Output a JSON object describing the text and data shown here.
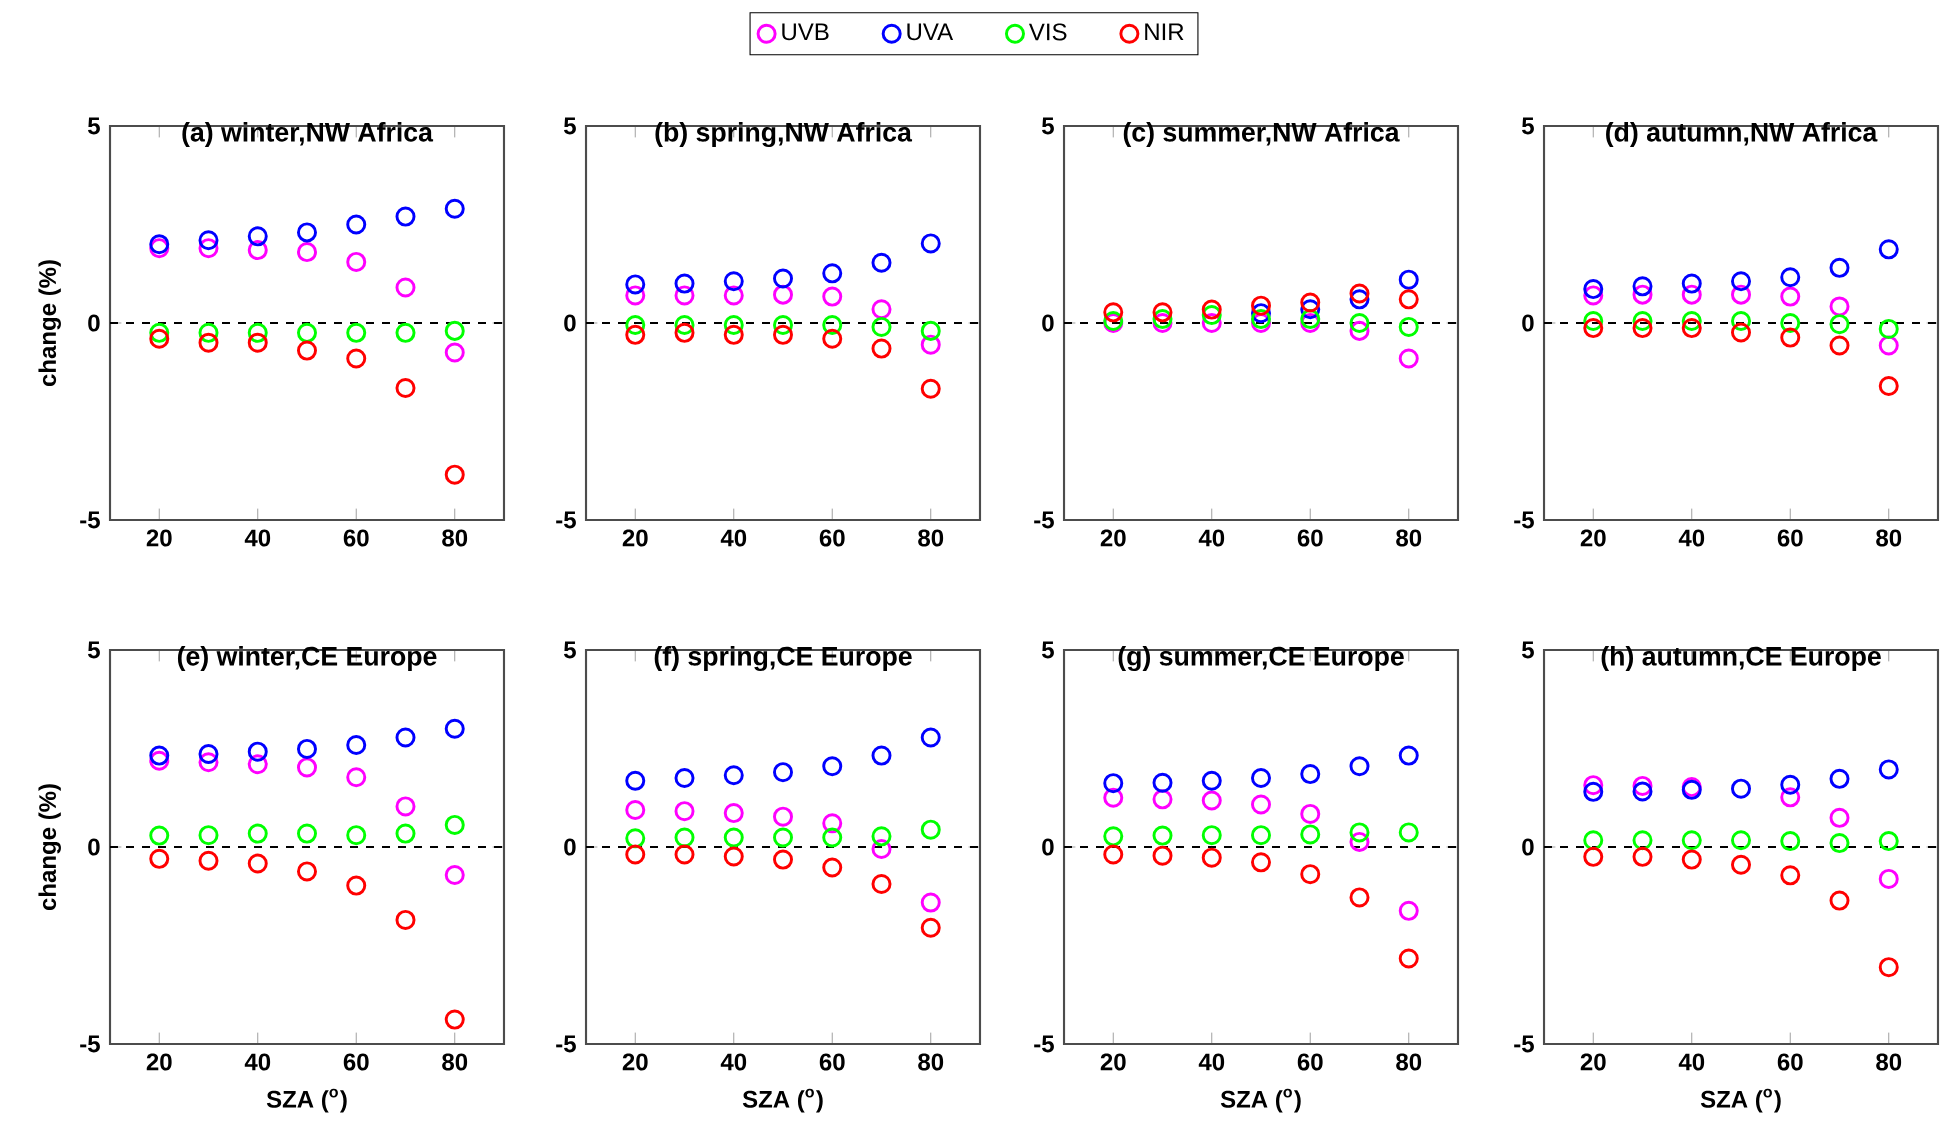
{
  "chart_data": [
    {
      "type": "scatter",
      "title": "(a) winter,NW Africa",
      "ylabel": "change (%)",
      "x": [
        20,
        30,
        40,
        50,
        60,
        70,
        80
      ],
      "xlim": [
        10,
        90
      ],
      "xticks": [
        20,
        40,
        60,
        80
      ],
      "ylim": [
        -5,
        5
      ],
      "yticks": [
        -5,
        0,
        5
      ],
      "marker": "circle",
      "legend": "top",
      "ref_lines": [
        {
          "axis": "y",
          "value": 0,
          "color": "#000000",
          "line_style": "dashed"
        }
      ],
      "series": [
        {
          "name": "UVB",
          "color": "#ff00ff",
          "values": [
            1.9,
            1.9,
            1.85,
            1.8,
            1.55,
            0.9,
            -0.75
          ]
        },
        {
          "name": "UVA",
          "color": "#0000ff",
          "values": [
            2.0,
            2.1,
            2.2,
            2.3,
            2.5,
            2.7,
            2.9
          ]
        },
        {
          "name": "VIS",
          "color": "#00ff00",
          "values": [
            -0.25,
            -0.25,
            -0.25,
            -0.25,
            -0.25,
            -0.25,
            -0.2
          ]
        },
        {
          "name": "NIR",
          "color": "#ff0000",
          "values": [
            -0.4,
            -0.5,
            -0.5,
            -0.7,
            -0.9,
            -1.65,
            -3.85
          ]
        }
      ]
    },
    {
      "type": "scatter",
      "title": "(b) spring,NW Africa",
      "x": [
        20,
        30,
        40,
        50,
        60,
        70,
        80
      ],
      "xlim": [
        10,
        90
      ],
      "xticks": [
        20,
        40,
        60,
        80
      ],
      "ylim": [
        -5,
        5
      ],
      "yticks": [
        -5,
        0,
        5
      ],
      "marker": "circle",
      "ref_lines": [
        {
          "axis": "y",
          "value": 0,
          "color": "#000000",
          "line_style": "dashed"
        }
      ],
      "series": [
        {
          "color": "#ff00ff",
          "values": [
            0.7,
            0.7,
            0.7,
            0.72,
            0.67,
            0.35,
            -0.55
          ]
        },
        {
          "color": "#0000ff",
          "values": [
            0.98,
            1.0,
            1.06,
            1.13,
            1.26,
            1.53,
            2.02
          ]
        },
        {
          "color": "#00ff00",
          "values": [
            -0.05,
            -0.05,
            -0.05,
            -0.05,
            -0.05,
            -0.1,
            -0.2
          ]
        },
        {
          "color": "#ff0000",
          "values": [
            -0.3,
            -0.25,
            -0.3,
            -0.3,
            -0.4,
            -0.65,
            -1.67
          ]
        }
      ]
    },
    {
      "type": "scatter",
      "title": "(c) summer,NW Africa",
      "x": [
        20,
        30,
        40,
        50,
        60,
        70,
        80
      ],
      "xlim": [
        10,
        90
      ],
      "xticks": [
        20,
        40,
        60,
        80
      ],
      "ylim": [
        -5,
        5
      ],
      "yticks": [
        -5,
        0,
        5
      ],
      "marker": "circle",
      "ref_lines": [
        {
          "axis": "y",
          "value": 0,
          "color": "#000000",
          "line_style": "dashed"
        }
      ],
      "series": [
        {
          "color": "#ff00ff",
          "values": [
            0,
            0,
            0,
            0,
            0,
            -0.2,
            -0.9
          ]
        },
        {
          "color": "#0000ff",
          "values": [
            null,
            null,
            null,
            0.25,
            0.35,
            0.6,
            1.1
          ]
        },
        {
          "color": "#00ff00",
          "values": [
            0.05,
            0.1,
            0.2,
            0.1,
            0.1,
            0,
            -0.1
          ]
        },
        {
          "color": "#ff0000",
          "values": [
            0.27,
            0.27,
            0.34,
            0.44,
            0.52,
            0.75,
            0.6
          ]
        }
      ]
    },
    {
      "type": "scatter",
      "title": "(d) autumn,NW Africa",
      "x": [
        20,
        30,
        40,
        50,
        60,
        70,
        80
      ],
      "xlim": [
        10,
        90
      ],
      "xticks": [
        20,
        40,
        60,
        80
      ],
      "ylim": [
        -5,
        5
      ],
      "yticks": [
        -5,
        0,
        5
      ],
      "marker": "circle",
      "ref_lines": [
        {
          "axis": "y",
          "value": 0,
          "color": "#000000",
          "line_style": "dashed"
        }
      ],
      "series": [
        {
          "color": "#ff00ff",
          "values": [
            0.7,
            0.72,
            0.72,
            0.72,
            0.67,
            0.42,
            -0.57
          ]
        },
        {
          "color": "#0000ff",
          "values": [
            0.86,
            0.93,
            1.0,
            1.06,
            1.16,
            1.4,
            1.87
          ]
        },
        {
          "color": "#00ff00",
          "values": [
            0.05,
            0.05,
            0.05,
            0.05,
            0,
            -0.03,
            -0.15
          ]
        },
        {
          "color": "#ff0000",
          "values": [
            -0.13,
            -0.13,
            -0.13,
            -0.24,
            -0.37,
            -0.57,
            -1.6
          ]
        }
      ]
    },
    {
      "type": "scatter",
      "title": "(e) winter,CE Europe",
      "xlabel": "SZA ($^{o}$)",
      "ylabel": "change (%)",
      "x": [
        20,
        30,
        40,
        50,
        60,
        70,
        80
      ],
      "xlim": [
        10,
        90
      ],
      "xticks": [
        20,
        40,
        60,
        80
      ],
      "ylim": [
        -5,
        5
      ],
      "yticks": [
        -5,
        0,
        5
      ],
      "marker": "circle",
      "ref_lines": [
        {
          "axis": "y",
          "value": 0,
          "color": "#000000",
          "line_style": "dashed"
        }
      ],
      "series": [
        {
          "color": "#ff00ff",
          "values": [
            2.19,
            2.15,
            2.1,
            2.02,
            1.77,
            1.03,
            -0.71
          ]
        },
        {
          "color": "#0000ff",
          "values": [
            2.32,
            2.36,
            2.42,
            2.49,
            2.59,
            2.78,
            3.0
          ]
        },
        {
          "color": "#00ff00",
          "values": [
            0.29,
            0.3,
            0.34,
            0.34,
            0.3,
            0.34,
            0.56
          ]
        },
        {
          "color": "#ff0000",
          "values": [
            -0.3,
            -0.35,
            -0.42,
            -0.62,
            -0.98,
            -1.85,
            -4.38
          ]
        }
      ]
    },
    {
      "type": "scatter",
      "title": "(f) spring,CE Europe",
      "xlabel": "SZA ($^{o}$)",
      "x": [
        20,
        30,
        40,
        50,
        60,
        70,
        80
      ],
      "xlim": [
        10,
        90
      ],
      "xticks": [
        20,
        40,
        60,
        80
      ],
      "ylim": [
        -5,
        5
      ],
      "yticks": [
        -5,
        0,
        5
      ],
      "marker": "circle",
      "ref_lines": [
        {
          "axis": "y",
          "value": 0,
          "color": "#000000",
          "line_style": "dashed"
        }
      ],
      "series": [
        {
          "color": "#ff00ff",
          "values": [
            0.94,
            0.91,
            0.86,
            0.77,
            0.6,
            -0.05,
            -1.41
          ]
        },
        {
          "color": "#0000ff",
          "values": [
            1.68,
            1.75,
            1.82,
            1.9,
            2.05,
            2.32,
            2.78
          ]
        },
        {
          "color": "#00ff00",
          "values": [
            0.22,
            0.24,
            0.24,
            0.24,
            0.24,
            0.27,
            0.44
          ]
        },
        {
          "color": "#ff0000",
          "values": [
            -0.19,
            -0.19,
            -0.24,
            -0.32,
            -0.52,
            -0.94,
            -2.05
          ]
        }
      ]
    },
    {
      "type": "scatter",
      "title": "(g) summer,CE Europe",
      "xlabel": "SZA ($^{o}$)",
      "x": [
        20,
        30,
        40,
        50,
        60,
        70,
        80
      ],
      "xlim": [
        10,
        90
      ],
      "xticks": [
        20,
        40,
        60,
        80
      ],
      "ylim": [
        -5,
        5
      ],
      "yticks": [
        -5,
        0,
        5
      ],
      "marker": "circle",
      "ref_lines": [
        {
          "axis": "y",
          "value": 0,
          "color": "#000000",
          "line_style": "dashed"
        }
      ],
      "series": [
        {
          "color": "#ff00ff",
          "values": [
            1.25,
            1.21,
            1.18,
            1.08,
            0.84,
            0.13,
            -1.62
          ]
        },
        {
          "color": "#0000ff",
          "values": [
            1.62,
            1.63,
            1.68,
            1.75,
            1.85,
            2.05,
            2.32
          ]
        },
        {
          "color": "#00ff00",
          "values": [
            0.27,
            0.29,
            0.3,
            0.3,
            0.32,
            0.37,
            0.37
          ]
        },
        {
          "color": "#ff0000",
          "values": [
            -0.19,
            -0.22,
            -0.27,
            -0.39,
            -0.69,
            -1.28,
            -2.83
          ]
        }
      ]
    },
    {
      "type": "scatter",
      "title": "(h) autumn,CE Europe",
      "xlabel": "SZA ($^{o}$)",
      "x": [
        20,
        30,
        40,
        50,
        60,
        70,
        80
      ],
      "xlim": [
        10,
        90
      ],
      "xticks": [
        20,
        40,
        60,
        80
      ],
      "ylim": [
        -5,
        5
      ],
      "yticks": [
        -5,
        0,
        5
      ],
      "marker": "circle",
      "ref_lines": [
        {
          "axis": "y",
          "value": 0,
          "color": "#000000",
          "line_style": "dashed"
        }
      ],
      "series": [
        {
          "color": "#ff00ff",
          "values": [
            1.57,
            1.55,
            1.52,
            null,
            1.26,
            0.74,
            -0.81
          ]
        },
        {
          "color": "#0000ff",
          "values": [
            1.4,
            1.41,
            1.45,
            1.48,
            1.58,
            1.73,
            1.97
          ]
        },
        {
          "color": "#00ff00",
          "values": [
            0.17,
            0.17,
            0.17,
            0.17,
            0.15,
            0.1,
            0.15
          ]
        },
        {
          "color": "#ff0000",
          "values": [
            -0.25,
            -0.25,
            -0.32,
            -0.45,
            -0.72,
            -1.36,
            -3.05
          ]
        }
      ]
    }
  ]
}
